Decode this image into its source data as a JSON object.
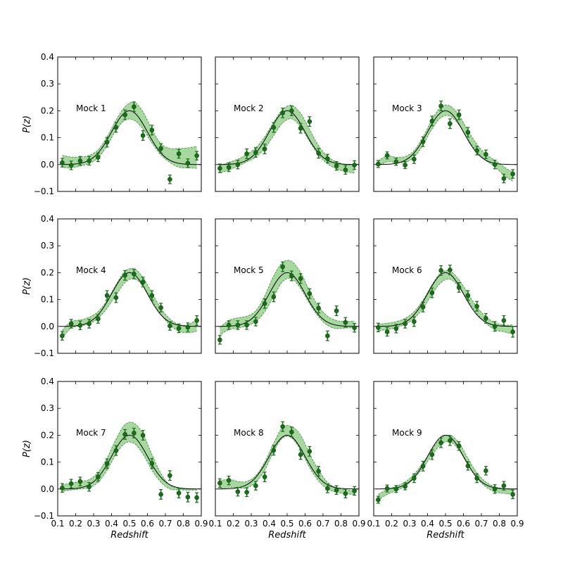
{
  "figure": {
    "x_axis_title": "Redshift",
    "y_axis_title": "P(z)"
  },
  "chart_data": {
    "type": "line",
    "layout": "3x3 grid",
    "xlim": [
      0.1,
      0.9
    ],
    "ylim": [
      -0.1,
      0.4
    ],
    "x_ticks": [
      "0.1",
      "0.2",
      "0.3",
      "0.4",
      "0.5",
      "0.6",
      "0.7",
      "0.8",
      "0.9"
    ],
    "y_ticks": [
      "−0.1",
      "0.0",
      "0.1",
      "0.2",
      "0.3",
      "0.4"
    ],
    "xlabel": "Redshift",
    "ylabel": "P(z)",
    "grid": false,
    "colors": {
      "points": "#1a6e1a",
      "band_fill": "#a8d8a0",
      "band_edge": "#3f9a3f",
      "model_line": "#000000"
    },
    "true_model": {
      "type": "gaussian",
      "mean": 0.5,
      "sigma": 0.1,
      "peak": 0.2
    },
    "x": [
      0.125,
      0.175,
      0.225,
      0.275,
      0.325,
      0.375,
      0.425,
      0.475,
      0.525,
      0.575,
      0.625,
      0.675,
      0.725,
      0.775,
      0.825,
      0.875
    ],
    "panels": [
      {
        "label": "Mock 1",
        "y": [
          0.007,
          -0.003,
          0.014,
          0.014,
          0.027,
          0.083,
          0.138,
          0.185,
          0.215,
          0.108,
          0.128,
          0.06,
          -0.055,
          0.04,
          0.005,
          0.033
        ],
        "yerr": [
          0.016,
          0.016,
          0.016,
          0.016,
          0.016,
          0.018,
          0.018,
          0.018,
          0.018,
          0.018,
          0.018,
          0.018,
          0.016,
          0.016,
          0.016,
          0.016
        ],
        "band_low": [
          -0.01,
          -0.012,
          -0.006,
          0.004,
          0.025,
          0.07,
          0.128,
          0.165,
          0.165,
          0.132,
          0.08,
          0.036,
          0.008,
          -0.01,
          -0.012,
          -0.014
        ],
        "band_high": [
          0.034,
          0.028,
          0.028,
          0.034,
          0.055,
          0.103,
          0.165,
          0.215,
          0.232,
          0.196,
          0.13,
          0.077,
          0.06,
          0.06,
          0.062,
          0.068
        ]
      },
      {
        "label": "Mock 2",
        "y": [
          -0.014,
          -0.01,
          0.0,
          0.04,
          0.045,
          0.058,
          0.138,
          0.192,
          0.2,
          0.135,
          0.16,
          0.042,
          0.022,
          -0.005,
          -0.02,
          -0.002
        ],
        "yerr": [
          0.016,
          0.016,
          0.016,
          0.018,
          0.018,
          0.018,
          0.018,
          0.018,
          0.018,
          0.018,
          0.018,
          0.018,
          0.016,
          0.016,
          0.016,
          0.016
        ],
        "band_low": [
          -0.032,
          -0.02,
          -0.006,
          0.01,
          0.028,
          0.06,
          0.108,
          0.155,
          0.17,
          0.14,
          0.086,
          0.036,
          0.003,
          -0.016,
          -0.026,
          -0.032
        ],
        "band_high": [
          -0.004,
          0.008,
          0.02,
          0.038,
          0.062,
          0.103,
          0.158,
          0.205,
          0.22,
          0.19,
          0.13,
          0.07,
          0.03,
          0.01,
          0.0,
          -0.002
        ]
      },
      {
        "label": "Mock 3",
        "y": [
          0.002,
          0.034,
          0.01,
          -0.002,
          0.02,
          0.085,
          0.162,
          0.218,
          0.152,
          0.185,
          0.12,
          0.052,
          0.038,
          0.0,
          -0.052,
          -0.035
        ],
        "yerr": [
          0.013,
          0.013,
          0.013,
          0.013,
          0.016,
          0.018,
          0.018,
          0.018,
          0.018,
          0.018,
          0.018,
          0.016,
          0.016,
          0.016,
          0.016,
          0.016
        ],
        "band_low": [
          -0.006,
          0.01,
          0.008,
          0.008,
          0.028,
          0.073,
          0.133,
          0.175,
          0.18,
          0.147,
          0.094,
          0.048,
          0.015,
          -0.008,
          -0.04,
          -0.062
        ],
        "band_high": [
          0.014,
          0.032,
          0.027,
          0.03,
          0.052,
          0.103,
          0.167,
          0.215,
          0.218,
          0.183,
          0.126,
          0.075,
          0.038,
          0.016,
          -0.008,
          -0.03
        ]
      },
      {
        "label": "Mock 4",
        "y": [
          -0.035,
          0.01,
          0.004,
          0.01,
          0.028,
          0.115,
          0.107,
          0.19,
          0.195,
          0.165,
          0.115,
          0.07,
          0.002,
          -0.007,
          -0.003,
          0.022
        ],
        "yerr": [
          0.016,
          0.016,
          0.016,
          0.016,
          0.016,
          0.018,
          0.018,
          0.018,
          0.018,
          0.018,
          0.018,
          0.016,
          0.016,
          0.016,
          0.016,
          0.018
        ],
        "band_low": [
          -0.042,
          -0.006,
          0.002,
          0.01,
          0.03,
          0.068,
          0.117,
          0.163,
          0.178,
          0.15,
          0.098,
          0.045,
          0.006,
          -0.018,
          -0.024,
          -0.018
        ],
        "band_high": [
          -0.015,
          0.018,
          0.024,
          0.034,
          0.055,
          0.097,
          0.155,
          0.205,
          0.214,
          0.182,
          0.124,
          0.067,
          0.028,
          0.007,
          0.006,
          0.026
        ]
      },
      {
        "label": "Mock 5",
        "y": [
          -0.05,
          0.005,
          0.005,
          0.005,
          0.018,
          0.085,
          0.11,
          0.222,
          0.188,
          0.178,
          0.122,
          0.068,
          -0.035,
          0.058,
          0.015,
          -0.005
        ],
        "yerr": [
          0.016,
          0.016,
          0.016,
          0.016,
          0.016,
          0.018,
          0.018,
          0.018,
          0.018,
          0.018,
          0.018,
          0.018,
          0.018,
          0.018,
          0.018,
          0.016
        ],
        "band_low": [
          -0.032,
          -0.012,
          -0.006,
          0.002,
          0.018,
          0.055,
          0.112,
          0.167,
          0.178,
          0.141,
          0.085,
          0.036,
          0.004,
          -0.008,
          -0.006,
          -0.004
        ],
        "band_high": [
          -0.004,
          0.022,
          0.032,
          0.038,
          0.058,
          0.113,
          0.188,
          0.238,
          0.242,
          0.2,
          0.132,
          0.074,
          0.038,
          0.022,
          0.018,
          0.02
        ]
      },
      {
        "label": "Mock 6",
        "y": [
          -0.004,
          -0.02,
          -0.008,
          0.01,
          0.018,
          0.072,
          0.125,
          0.208,
          0.21,
          0.145,
          0.115,
          0.075,
          0.03,
          0.0,
          0.022,
          -0.02
        ],
        "yerr": [
          0.016,
          0.016,
          0.016,
          0.016,
          0.018,
          0.018,
          0.018,
          0.018,
          0.018,
          0.018,
          0.018,
          0.018,
          0.018,
          0.018,
          0.018,
          0.02
        ],
        "band_low": [
          -0.016,
          -0.012,
          -0.004,
          0.008,
          0.03,
          0.068,
          0.12,
          0.163,
          0.176,
          0.146,
          0.096,
          0.048,
          0.012,
          -0.012,
          -0.02,
          -0.028
        ],
        "band_high": [
          0.008,
          0.012,
          0.018,
          0.03,
          0.055,
          0.098,
          0.155,
          0.2,
          0.205,
          0.174,
          0.122,
          0.072,
          0.036,
          0.014,
          0.005,
          0.006
        ]
      },
      {
        "label": "Mock 7",
        "y": [
          0.004,
          0.02,
          0.028,
          0.008,
          0.045,
          0.094,
          0.143,
          0.203,
          0.208,
          0.2,
          0.095,
          -0.02,
          0.05,
          -0.015,
          -0.03,
          -0.032
        ],
        "yerr": [
          0.016,
          0.016,
          0.016,
          0.016,
          0.016,
          0.018,
          0.018,
          0.018,
          0.018,
          0.018,
          0.018,
          0.018,
          0.018,
          0.018,
          0.018,
          0.018
        ],
        "band_low": [
          -0.008,
          -0.004,
          0.0,
          0.005,
          0.025,
          0.07,
          0.13,
          0.17,
          0.17,
          0.13,
          0.07,
          0.025,
          0.0,
          -0.003,
          -0.004,
          -0.004
        ],
        "band_high": [
          0.015,
          0.022,
          0.028,
          0.035,
          0.062,
          0.115,
          0.185,
          0.24,
          0.245,
          0.205,
          0.128,
          0.058,
          0.014,
          0.002,
          0.0,
          0.0
        ]
      },
      {
        "label": "Mock 8",
        "y": [
          0.022,
          0.032,
          -0.01,
          -0.012,
          0.012,
          0.045,
          0.144,
          0.232,
          0.212,
          0.128,
          0.14,
          0.066,
          0.002,
          -0.004,
          -0.017,
          -0.007
        ],
        "yerr": [
          0.016,
          0.016,
          0.016,
          0.016,
          0.016,
          0.018,
          0.018,
          0.018,
          0.018,
          0.018,
          0.018,
          0.018,
          0.016,
          0.016,
          0.016,
          0.016
        ],
        "band_low": [
          0.0,
          0.006,
          0.004,
          0.005,
          0.025,
          0.07,
          0.14,
          0.19,
          0.19,
          0.144,
          0.08,
          0.03,
          0.0,
          -0.012,
          -0.018,
          -0.02
        ],
        "band_high": [
          0.03,
          0.036,
          0.028,
          0.028,
          0.05,
          0.1,
          0.17,
          0.23,
          0.232,
          0.2,
          0.13,
          0.07,
          0.025,
          0.004,
          -0.004,
          -0.006
        ]
      },
      {
        "label": "Mock 9",
        "y": [
          -0.04,
          0.002,
          0.0,
          0.01,
          0.04,
          0.085,
          0.128,
          0.172,
          0.18,
          0.16,
          0.086,
          0.04,
          0.068,
          0.0,
          0.012,
          -0.02
        ],
        "yerr": [
          0.013,
          0.013,
          0.013,
          0.013,
          0.016,
          0.018,
          0.018,
          0.018,
          0.018,
          0.016,
          0.016,
          0.016,
          0.016,
          0.016,
          0.016,
          0.016
        ],
        "band_low": [
          -0.04,
          -0.02,
          -0.006,
          0.01,
          0.04,
          0.08,
          0.126,
          0.166,
          0.176,
          0.145,
          0.09,
          0.04,
          0.008,
          -0.01,
          -0.016,
          -0.02
        ],
        "band_high": [
          -0.02,
          -0.002,
          0.01,
          0.026,
          0.055,
          0.098,
          0.146,
          0.19,
          0.2,
          0.172,
          0.114,
          0.06,
          0.026,
          0.008,
          0.002,
          -0.002
        ]
      }
    ]
  }
}
